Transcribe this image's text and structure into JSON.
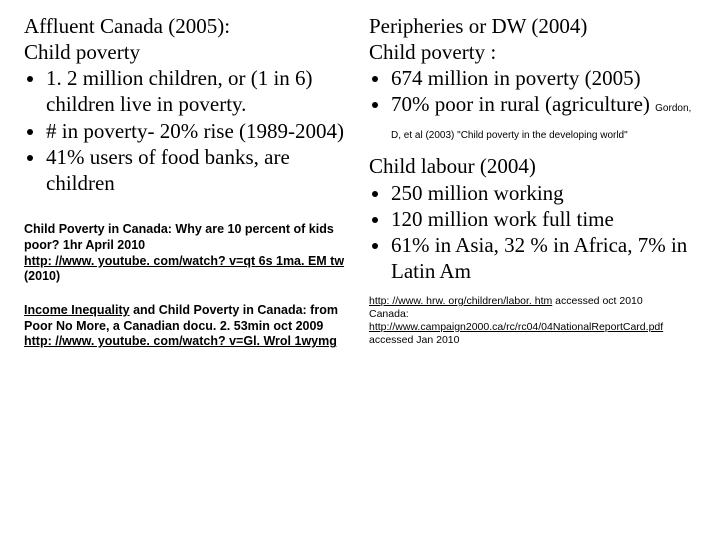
{
  "left": {
    "title": "Affluent Canada (2005):",
    "subtitle": "Child poverty",
    "bullets": [
      "1. 2 million children, or (1 in 6) children live in poverty.",
      "# in poverty- 20% rise (1989-2004)",
      "41% users of food banks, are children"
    ],
    "ref1_line1": "Child Poverty in Canada: Why are 10 percent of kids poor? 1hr April 2010",
    "ref1_link": "http: //www. youtube. com/watch? v=qt 6s 1ma. EM tw",
    "ref1_tail": " (2010)",
    "ref2_line1_a": "Income Inequality",
    "ref2_line1_b": " and Child Poverty in Canada: from Poor No More, a Canadian docu.  2. 53min oct 2009",
    "ref2_link": "http: //www. youtube. com/watch? v=Gl. Wrol 1wymg"
  },
  "right": {
    "title": " Peripheries or DW (2004)",
    "subtitle": "Child poverty :",
    "bullets1": [
      "674 million in poverty (2005)"
    ],
    "bullet2_main": "70% poor in rural (agriculture) ",
    "bullet2_cite": "Gordon, D, et al (2003) \"Child poverty in the developing world\"",
    "section2_title": "Child labour (2004)",
    "bullets2": [
      "250 million working",
      "120 million work full time",
      "61% in Asia, 32 % in Africa, 7% in Latin Am"
    ],
    "ref_a_link": "http: //www. hrw. org/children/labor. htm",
    "ref_a_tail": " accessed oct 2010",
    "ref_b_head": "Canada: ",
    "ref_b_link": "http://www.campaign2000.ca/rc/rc04/04NationalReportCard.pdf",
    "ref_b_tail": "  accessed  Jan 2010"
  },
  "colors": {
    "background": "#ffffff",
    "text": "#000000"
  },
  "fonts": {
    "body_family": "Times New Roman",
    "body_size_pt": 16,
    "small_family": "Arial",
    "small_bold_size_pt": 9,
    "ref_size_pt": 8
  }
}
